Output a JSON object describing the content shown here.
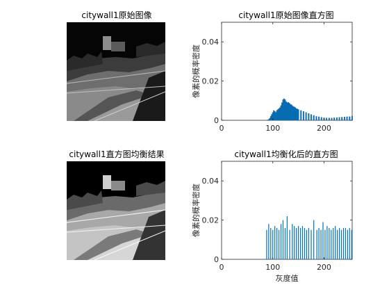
{
  "panels": {
    "top_left_title": "citywall1原始图像",
    "top_right_title": "citywall1原始图像直方图",
    "bottom_left_title": "citywall1直方图均衡结果",
    "bottom_right_title": "citywall1均衡化后的直方图"
  },
  "images": [
    {
      "description_id": "original-image",
      "content": "grayscale photo of a city wall (original, dark)"
    },
    {
      "description_id": "equalized-image",
      "content": "grayscale photo of a city wall (equalized, higher contrast)"
    }
  ],
  "colors": {
    "bar": "#0072BD",
    "axis": "#262626",
    "background": "#ffffff"
  },
  "chart_data": [
    {
      "type": "bar",
      "title": "citywall1原始图像直方图",
      "xlabel": "",
      "ylabel": "像素的概率密度",
      "xlim": [
        0,
        255
      ],
      "ylim": [
        0,
        0.05
      ],
      "xticks": [
        "0",
        "100",
        "200"
      ],
      "yticks": [
        "0",
        "0.02",
        "0.04"
      ],
      "series": [
        {
          "x": [
            90,
            92,
            94,
            96,
            98,
            100,
            102,
            104,
            106,
            108,
            110,
            112,
            114,
            116,
            118,
            120,
            122,
            124,
            126,
            128,
            130,
            132,
            134,
            136,
            138,
            140,
            142,
            144,
            146,
            148,
            150,
            155,
            160,
            165,
            170,
            175,
            180,
            185,
            190,
            195,
            200,
            205,
            210,
            215,
            220,
            225,
            230,
            235,
            240,
            245,
            250,
            255
          ],
          "values": [
            0.0002,
            0.0004,
            0.001,
            0.002,
            0.003,
            0.004,
            0.005,
            0.0045,
            0.004,
            0.005,
            0.0055,
            0.006,
            0.0065,
            0.0075,
            0.009,
            0.0105,
            0.011,
            0.0105,
            0.0095,
            0.009,
            0.0092,
            0.0088,
            0.0082,
            0.008,
            0.0075,
            0.007,
            0.0068,
            0.0065,
            0.006,
            0.0058,
            0.0055,
            0.005,
            0.0045,
            0.004,
            0.0035,
            0.003,
            0.0025,
            0.002,
            0.0018,
            0.0015,
            0.0013,
            0.0012,
            0.0012,
            0.0012,
            0.0013,
            0.0014,
            0.0015,
            0.0016,
            0.0017,
            0.0018,
            0.0019,
            0.0021
          ]
        }
      ]
    },
    {
      "type": "bar",
      "title": "citywall1均衡化后的直方图",
      "xlabel": "灰度值",
      "ylabel": "像素的概率密度",
      "xlim": [
        0,
        255
      ],
      "ylim": [
        0,
        0.05
      ],
      "xticks": [
        "0",
        "100",
        "200"
      ],
      "yticks": [
        "0",
        "0.02",
        "0.04"
      ],
      "series": [
        {
          "x": [
            88,
            92,
            96,
            100,
            104,
            108,
            112,
            116,
            120,
            124,
            128,
            133,
            138,
            142,
            146,
            150,
            154,
            158,
            162,
            166,
            170,
            175,
            180,
            186,
            190,
            194,
            198,
            202,
            206,
            210,
            214,
            218,
            222,
            226,
            230,
            234,
            238,
            242,
            246,
            250,
            254
          ],
          "values": [
            0.015,
            0.018,
            0.016,
            0.015,
            0.017,
            0.016,
            0.015,
            0.018,
            0.02,
            0.016,
            0.022,
            0.015,
            0.018,
            0.017,
            0.016,
            0.017,
            0.016,
            0.017,
            0.016,
            0.015,
            0.016,
            0.015,
            0.02,
            0.015,
            0.016,
            0.015,
            0.019,
            0.015,
            0.017,
            0.016,
            0.015,
            0.016,
            0.017,
            0.015,
            0.016,
            0.015,
            0.016,
            0.016,
            0.015,
            0.016,
            0.015
          ]
        }
      ]
    }
  ]
}
